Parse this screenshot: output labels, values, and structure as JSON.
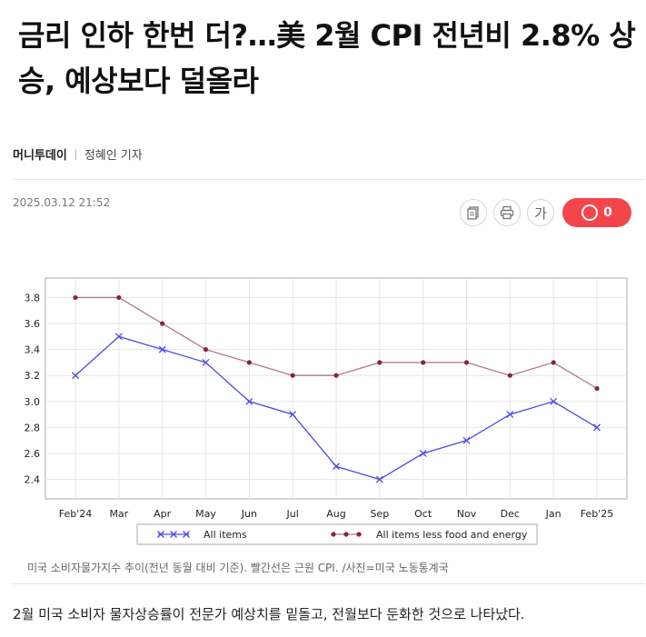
{
  "article": {
    "title": "금리 인하 한번 더?…美 2월 CPI 전년비 2.8% 상승, 예상보다 덜올라",
    "press": "머니투데이",
    "reporter": "정혜인 기자",
    "datetime": "2025.03.12 21:52",
    "comment_count": "0",
    "font_button_label": "가",
    "caption": "미국 소비자물가지수 추이(전년 동월 대비 기준). 빨간선은 근원 CPI. /사진=미국 노동통계국",
    "lead": "2월 미국 소비자 물자상승률이 전문가 예상치를 밑돌고, 전월보다 둔화한 것으로 나타났다."
  },
  "icons": {
    "copy": "copy-url-icon",
    "print": "print-icon",
    "comment": "comment-bubble-icon"
  },
  "colors": {
    "series_all_items": "#4a4ae6",
    "series_core": "#b37688",
    "core_marker": "#8b2340",
    "comment_button": "#f2464a"
  },
  "chart_data": {
    "type": "line",
    "categories": [
      "Feb'24",
      "Mar",
      "Apr",
      "May",
      "Jun",
      "Jul",
      "Aug",
      "Sep",
      "Oct",
      "Nov",
      "Dec",
      "Jan",
      "Feb'25"
    ],
    "yticks": [
      "2.4",
      "2.6",
      "2.8",
      "3.0",
      "3.2",
      "3.4",
      "3.6",
      "3.8"
    ],
    "ylim": [
      2.25,
      3.95
    ],
    "grid": true,
    "legend_position": "bottom",
    "series": [
      {
        "name": "All items",
        "marker": "x",
        "values": [
          3.2,
          3.5,
          3.4,
          3.3,
          3.0,
          2.9,
          2.5,
          2.4,
          2.6,
          2.7,
          2.9,
          3.0,
          2.8
        ]
      },
      {
        "name": "All items less food and energy",
        "marker": "dot",
        "values": [
          3.8,
          3.8,
          3.6,
          3.4,
          3.3,
          3.2,
          3.2,
          3.3,
          3.3,
          3.3,
          3.2,
          3.3,
          3.1
        ]
      }
    ]
  }
}
